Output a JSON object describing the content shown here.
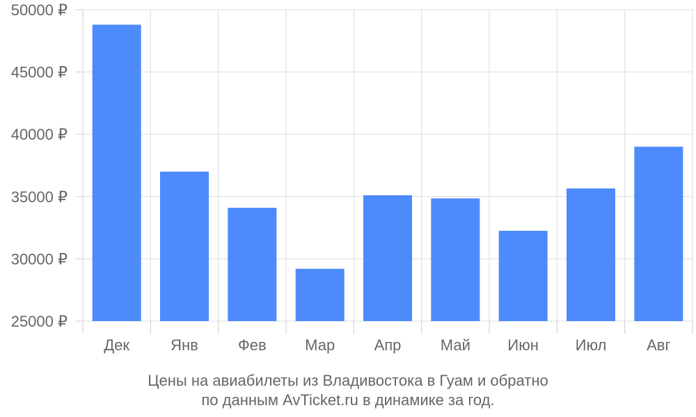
{
  "chart_data": {
    "type": "bar",
    "categories": [
      "Дек",
      "Янв",
      "Фев",
      "Мар",
      "Апр",
      "Май",
      "Июн",
      "Июл",
      "Авг"
    ],
    "values": [
      48800,
      37000,
      34100,
      29200,
      35100,
      34850,
      32250,
      35650,
      39000
    ],
    "ylim": [
      25000,
      50000
    ],
    "yticks": [
      25000,
      30000,
      35000,
      40000,
      45000,
      50000
    ],
    "ytick_labels": [
      "25000 ₽",
      "30000 ₽",
      "35000 ₽",
      "40000 ₽",
      "45000 ₽",
      "50000 ₽"
    ],
    "grid": true,
    "legend": "none",
    "bar_color": "#4d8afb",
    "grid_color": "#dddddd",
    "axis_color": "#cccccc",
    "text_color": "#666666"
  },
  "caption": {
    "line1": "Цены на авиабилеты из Владивостока в Гуам и обратно",
    "line2": "по данным AvTicket.ru в динамике за год."
  }
}
